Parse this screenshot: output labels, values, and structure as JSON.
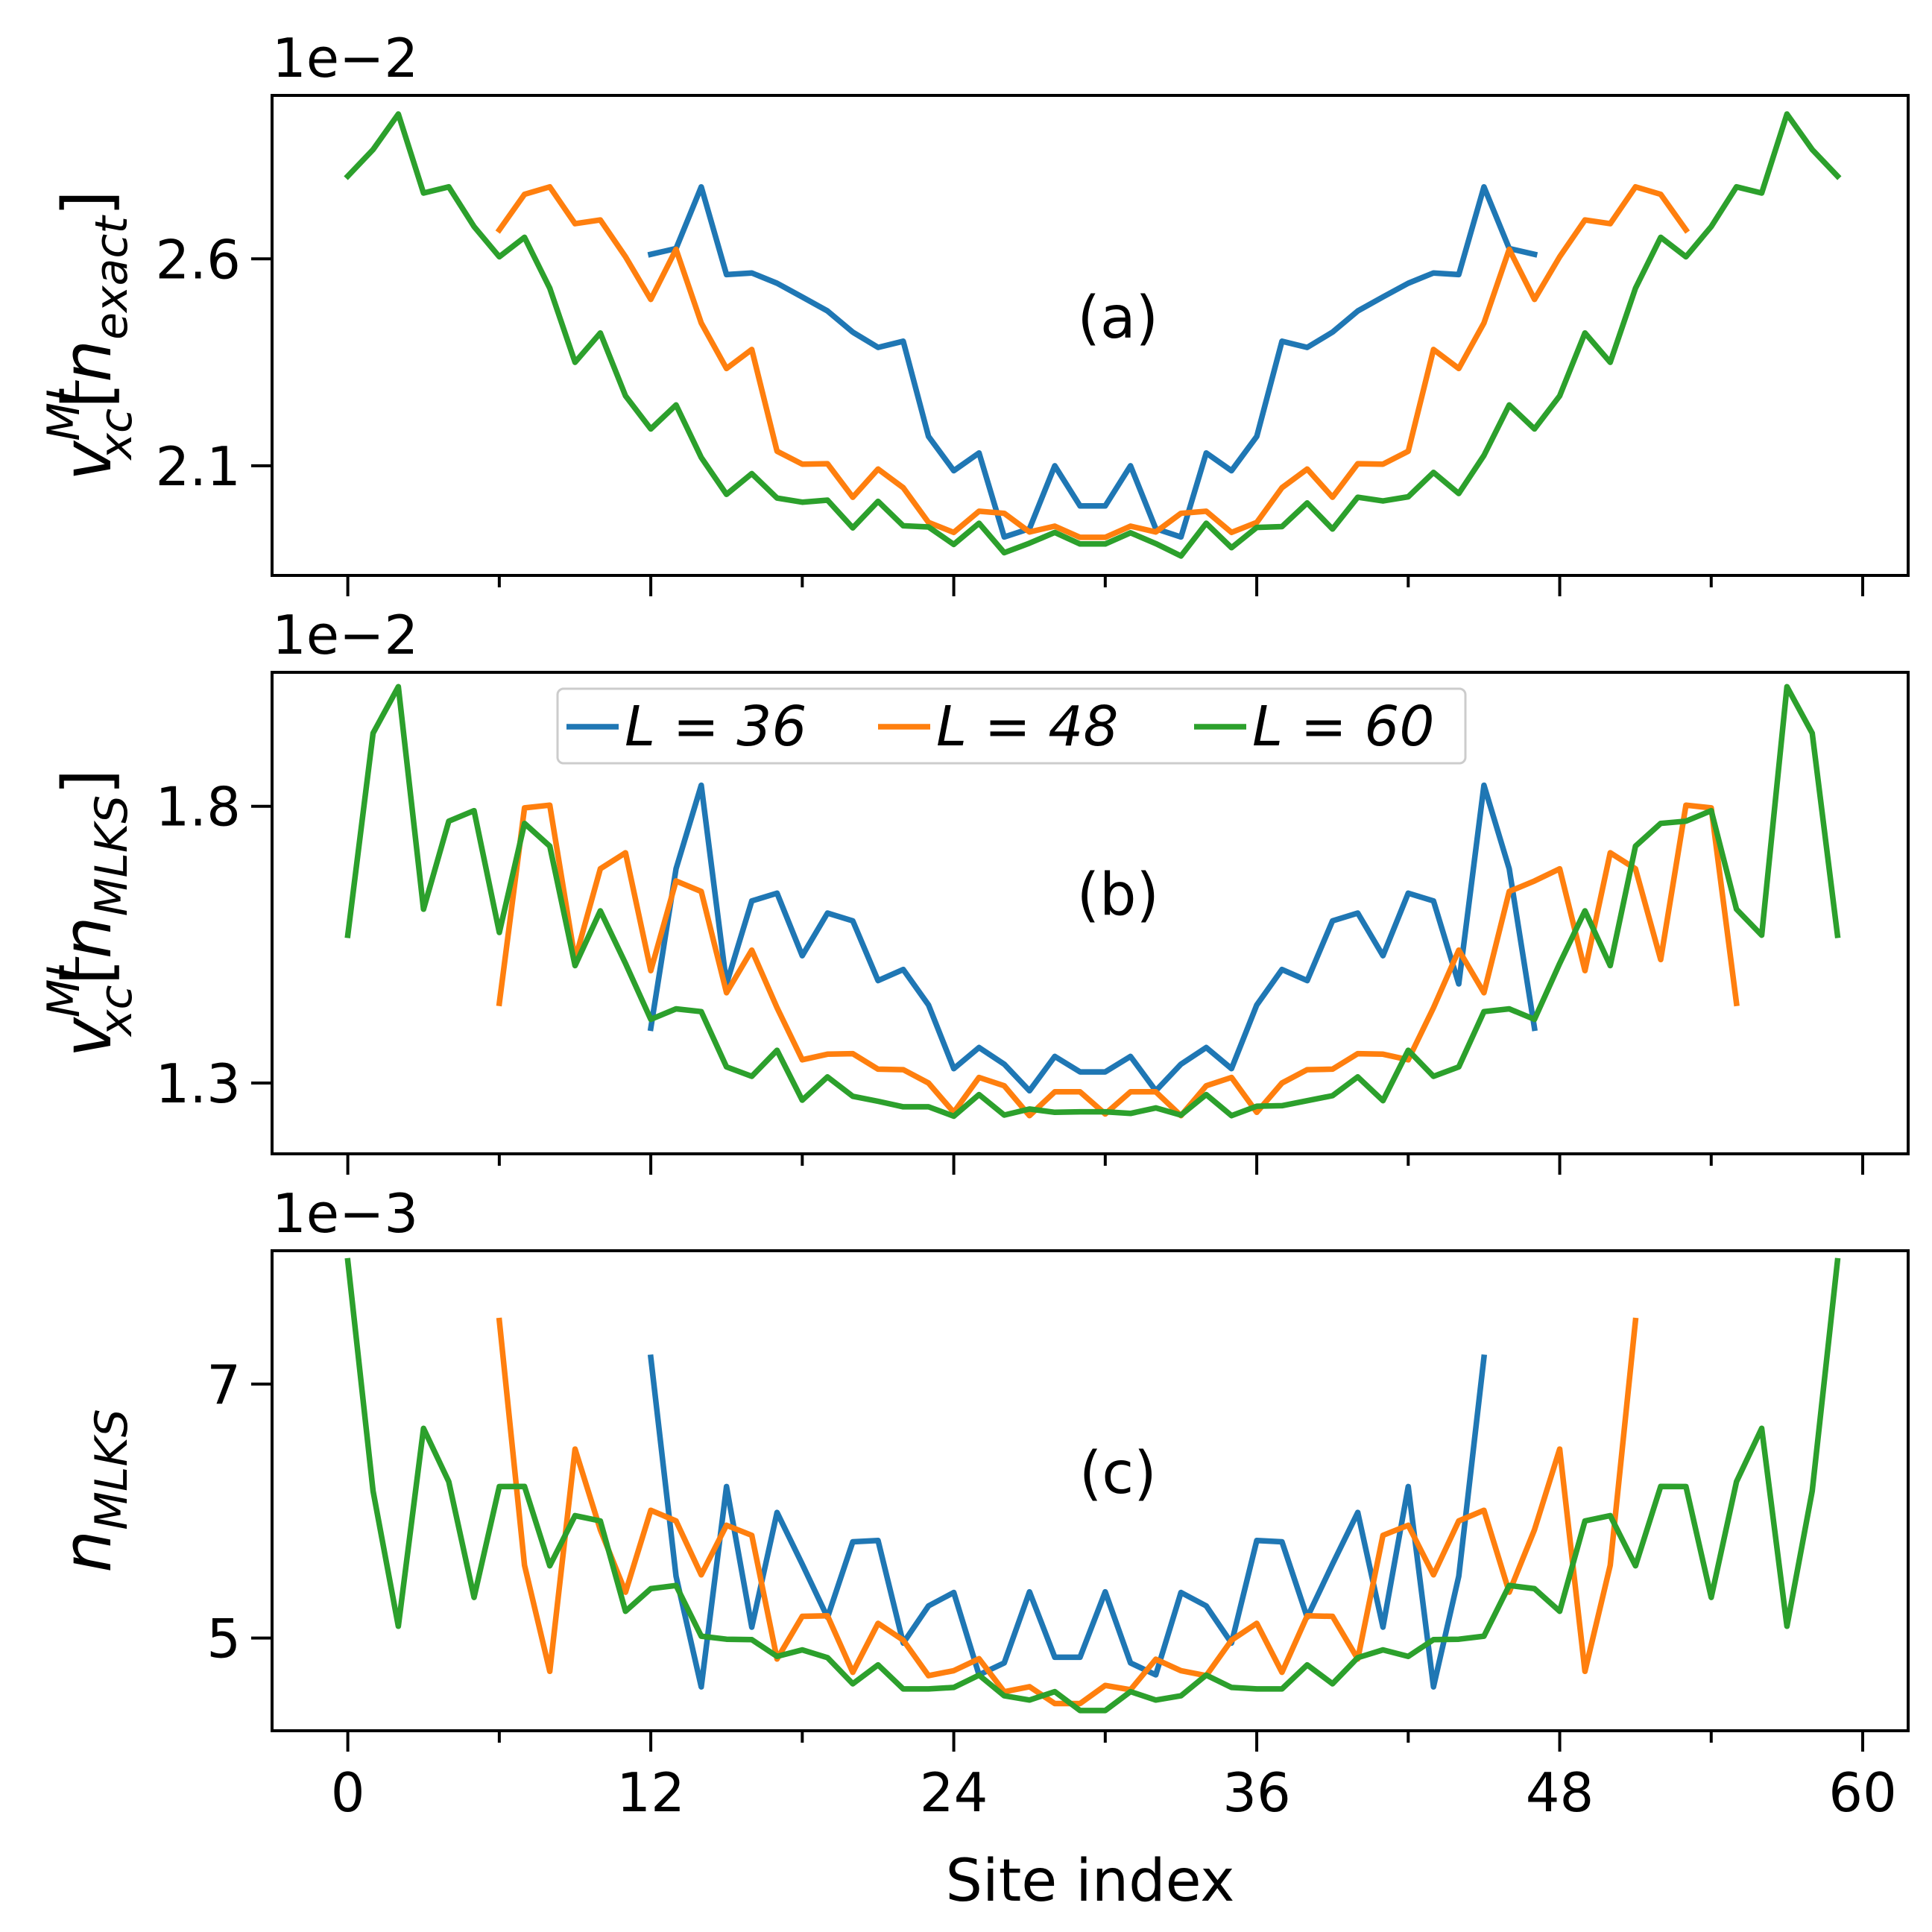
{
  "chart_data": [
    {
      "type": "line",
      "panel_label": "(a)",
      "ylabel": "v_xc^ML[n_exact]",
      "ylabel_parts": {
        "main": "v",
        "sup": "ML",
        "sub": "xc",
        "bracket_open": "[",
        "inner": "n",
        "inner_sub": "exact",
        "bracket_close": "]"
      },
      "offset_text": "1e−2",
      "xlim": [
        -3.0,
        61.8
      ],
      "ylim": [
        1.835,
        2.995
      ],
      "yticks": [
        2.1,
        2.6
      ],
      "ytick_labels": [
        "2.1",
        "2.6"
      ],
      "grid": false,
      "series": [
        {
          "name": "L = 36",
          "x_start": 12,
          "values": [
            2.611,
            2.625,
            2.774,
            2.562,
            2.566,
            2.541,
            2.508,
            2.474,
            2.423,
            2.386,
            2.401,
            2.171,
            2.088,
            2.131,
            1.928,
            1.948,
            2.1,
            2.003,
            2.003,
            2.1,
            1.948,
            1.928,
            2.131,
            2.088,
            2.171,
            2.401,
            2.386,
            2.423,
            2.474,
            2.508,
            2.541,
            2.566,
            2.562,
            2.774,
            2.625,
            2.611
          ]
        },
        {
          "name": "L = 48",
          "x_start": 6,
          "values": [
            2.67,
            2.756,
            2.774,
            2.685,
            2.694,
            2.605,
            2.502,
            2.623,
            2.445,
            2.335,
            2.381,
            2.135,
            2.104,
            2.105,
            2.024,
            2.092,
            2.047,
            1.963,
            1.939,
            1.99,
            1.985,
            1.94,
            1.954,
            1.927,
            1.927,
            1.954,
            1.94,
            1.985,
            1.99,
            1.939,
            1.963,
            2.047,
            2.092,
            2.024,
            2.105,
            2.104,
            2.135,
            2.381,
            2.335,
            2.445,
            2.623,
            2.502,
            2.605,
            2.694,
            2.685,
            2.774,
            2.756,
            2.67
          ]
        },
        {
          "name": "L = 60",
          "x_start": 0,
          "values": [
            2.8,
            2.864,
            2.95,
            2.759,
            2.774,
            2.678,
            2.605,
            2.652,
            2.529,
            2.35,
            2.421,
            2.269,
            2.189,
            2.247,
            2.12,
            2.031,
            2.081,
            2.022,
            2.012,
            2.017,
            1.95,
            2.014,
            1.955,
            1.952,
            1.91,
            1.961,
            1.89,
            1.913,
            1.939,
            1.911,
            1.911,
            1.938,
            1.912,
            1.882,
            1.961,
            1.902,
            1.951,
            1.953,
            2.01,
            1.947,
            2.024,
            2.015,
            2.025,
            2.084,
            2.033,
            2.125,
            2.247,
            2.189,
            2.269,
            2.421,
            2.35,
            2.529,
            2.652,
            2.605,
            2.678,
            2.774,
            2.759,
            2.95,
            2.864,
            2.8
          ]
        }
      ]
    },
    {
      "type": "line",
      "panel_label": "(b)",
      "ylabel": "v_xc^ML[n_MLKS]",
      "ylabel_parts": {
        "main": "v",
        "sup": "ML",
        "sub": "xc",
        "bracket_open": "[",
        "inner": "n",
        "inner_sub": "MLKS",
        "bracket_close": "]"
      },
      "offset_text": "1e−2",
      "xlim": [
        -3.0,
        61.8
      ],
      "ylim": [
        1.172,
        2.042
      ],
      "yticks": [
        1.3,
        1.8
      ],
      "ytick_labels": [
        "1.3",
        "1.8"
      ],
      "grid": false,
      "series": [
        {
          "name": "L = 36",
          "x_start": 12,
          "values": [
            1.399,
            1.687,
            1.838,
            1.479,
            1.629,
            1.643,
            1.53,
            1.607,
            1.593,
            1.485,
            1.505,
            1.441,
            1.326,
            1.364,
            1.334,
            1.286,
            1.348,
            1.32,
            1.32,
            1.348,
            1.286,
            1.334,
            1.364,
            1.326,
            1.441,
            1.505,
            1.485,
            1.593,
            1.607,
            1.53,
            1.643,
            1.629,
            1.479,
            1.838,
            1.687,
            1.399
          ]
        },
        {
          "name": "L = 48",
          "x_start": 6,
          "values": [
            1.444,
            1.797,
            1.802,
            1.523,
            1.687,
            1.716,
            1.503,
            1.665,
            1.646,
            1.463,
            1.54,
            1.436,
            1.342,
            1.352,
            1.353,
            1.325,
            1.324,
            1.3,
            1.247,
            1.31,
            1.295,
            1.241,
            1.284,
            1.284,
            1.244,
            1.284,
            1.284,
            1.241,
            1.295,
            1.31,
            1.247,
            1.3,
            1.324,
            1.325,
            1.353,
            1.352,
            1.342,
            1.436,
            1.54,
            1.463,
            1.646,
            1.665,
            1.687,
            1.503,
            1.716,
            1.687,
            1.523,
            1.802,
            1.797,
            1.444
          ]
        },
        {
          "name": "L = 60",
          "x_start": 0,
          "values": [
            1.567,
            1.932,
            2.016,
            1.614,
            1.773,
            1.792,
            1.572,
            1.769,
            1.728,
            1.512,
            1.611,
            1.516,
            1.415,
            1.434,
            1.429,
            1.329,
            1.312,
            1.359,
            1.269,
            1.311,
            1.276,
            1.267,
            1.257,
            1.257,
            1.24,
            1.279,
            1.242,
            1.253,
            1.247,
            1.248,
            1.248,
            1.245,
            1.255,
            1.242,
            1.279,
            1.241,
            1.258,
            1.259,
            1.268,
            1.277,
            1.311,
            1.268,
            1.359,
            1.312,
            1.329,
            1.429,
            1.434,
            1.415,
            1.516,
            1.611,
            1.512,
            1.728,
            1.769,
            1.773,
            1.792,
            1.614,
            1.567,
            2.016,
            1.932,
            1.567
          ]
        }
      ]
    },
    {
      "type": "line",
      "panel_label": "(c)",
      "ylabel": "n_MLKS",
      "ylabel_parts": {
        "main": "n",
        "sub": "MLKS"
      },
      "offset_text": "1e−3",
      "xlabel": "Site index",
      "xlim": [
        -3.0,
        61.8
      ],
      "ylim": [
        4.27,
        8.05
      ],
      "xticks": [
        0,
        12,
        24,
        36,
        48,
        60
      ],
      "xtick_labels": [
        "0",
        "12",
        "24",
        "36",
        "48",
        "60"
      ],
      "yticks": [
        5,
        7
      ],
      "ytick_labels": [
        "5",
        "7"
      ],
      "grid": false,
      "legend": {
        "placement": "upper-center",
        "entries": [
          "L = 36",
          "L = 48",
          "L = 60"
        ]
      },
      "series": [
        {
          "name": "L = 36",
          "x_start": 12,
          "values": [
            7.21,
            5.487,
            4.616,
            6.193,
            5.086,
            5.989,
            5.582,
            5.163,
            5.758,
            5.768,
            4.96,
            5.253,
            5.359,
            4.71,
            4.804,
            5.364,
            4.849,
            4.849,
            5.364,
            4.804,
            4.71,
            5.359,
            5.253,
            4.96,
            5.768,
            5.758,
            5.163,
            5.582,
            5.989,
            5.086,
            6.193,
            4.616,
            5.487,
            7.21
          ]
        },
        {
          "name": "L = 48",
          "x_start": 6,
          "values": [
            7.5,
            5.573,
            4.738,
            6.488,
            5.853,
            5.361,
            6.006,
            5.922,
            5.498,
            5.888,
            5.809,
            4.835,
            5.171,
            5.175,
            4.73,
            5.116,
            4.983,
            4.704,
            4.743,
            4.837,
            4.577,
            4.617,
            4.484,
            4.484,
            4.627,
            4.593,
            4.833,
            4.743,
            4.704,
            4.983,
            5.116,
            4.73,
            5.175,
            5.171,
            4.835,
            5.809,
            5.888,
            5.498,
            5.922,
            6.006,
            5.361,
            5.853,
            6.488,
            4.738,
            5.573,
            7.5
          ]
        },
        {
          "name": "L = 60",
          "x_start": 0,
          "values": [
            7.97,
            6.158,
            5.093,
            6.651,
            6.231,
            5.32,
            6.193,
            6.194,
            5.569,
            5.964,
            5.922,
            5.211,
            5.389,
            5.414,
            5.015,
            4.991,
            4.987,
            4.856,
            4.907,
            4.846,
            4.64,
            4.789,
            4.599,
            4.599,
            4.611,
            4.708,
            4.545,
            4.512,
            4.578,
            4.429,
            4.429,
            4.578,
            4.512,
            4.545,
            4.708,
            4.611,
            4.599,
            4.599,
            4.789,
            4.64,
            4.846,
            4.907,
            4.856,
            4.987,
            4.991,
            5.015,
            5.414,
            5.389,
            5.211,
            5.922,
            5.964,
            5.569,
            6.194,
            6.193,
            5.32,
            6.231,
            6.651,
            5.093,
            6.158,
            7.97
          ]
        }
      ]
    }
  ],
  "colors": {
    "L = 36": "#1f77b4",
    "L = 48": "#ff7f0e",
    "L = 60": "#2ca02c",
    "axes": "#000000",
    "legend_border": "#cccccc"
  }
}
